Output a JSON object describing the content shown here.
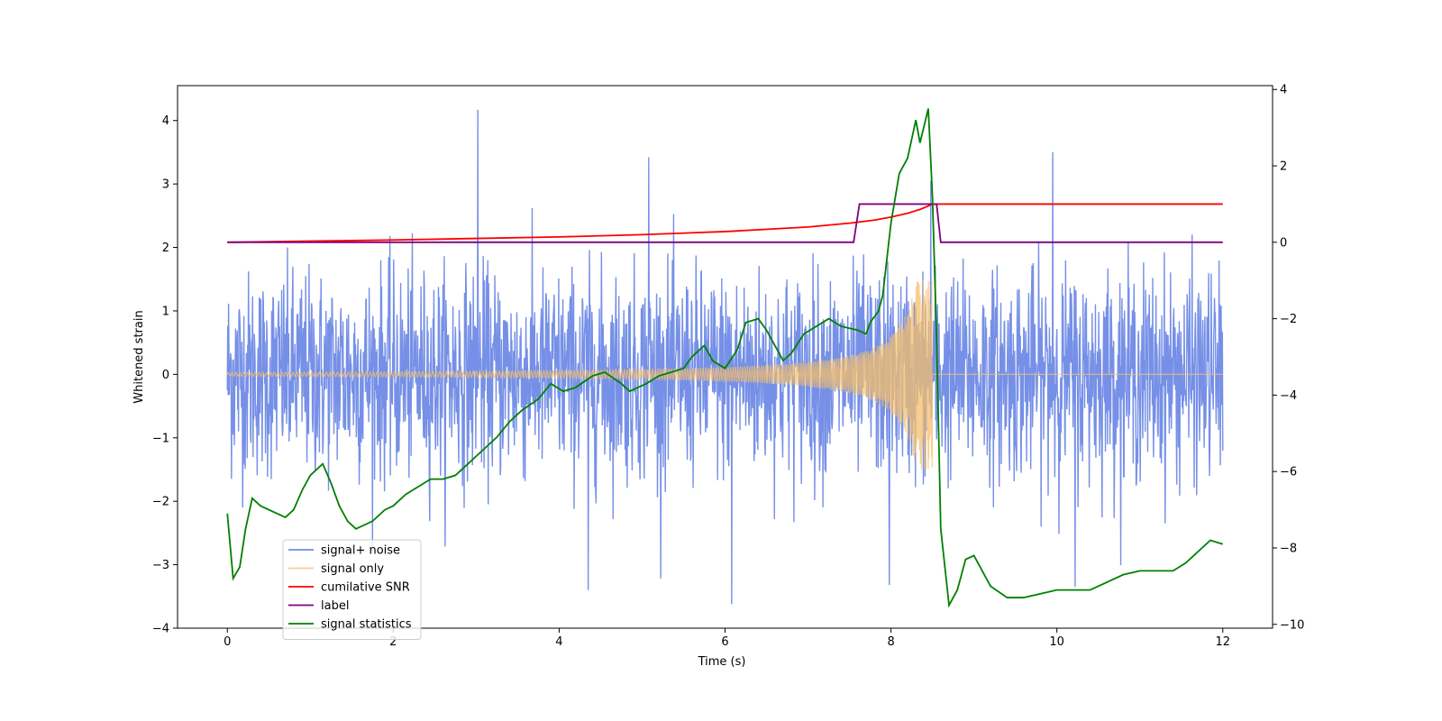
{
  "chart_data": {
    "type": "line",
    "title": "",
    "xlabel": "Time (s)",
    "ylabel": "Whitened strain",
    "xlim": [
      -0.6,
      12.6
    ],
    "ylim": [
      -4.0,
      4.55
    ],
    "y2lim": [
      -10.1,
      4.1
    ],
    "x_ticks": [
      0,
      2,
      4,
      6,
      8,
      10,
      12
    ],
    "x_tick_labels": [
      "0",
      "2",
      "4",
      "6",
      "8",
      "10",
      "12"
    ],
    "y_ticks": [
      -4,
      -3,
      -2,
      -1,
      0,
      1,
      2,
      3,
      4
    ],
    "y_tick_labels": [
      "−4",
      "−3",
      "−2",
      "−1",
      "0",
      "1",
      "2",
      "3",
      "4"
    ],
    "y2_ticks": [
      -10,
      -8,
      -6,
      -4,
      -2,
      0,
      2,
      4
    ],
    "y2_tick_labels": [
      "−10",
      "−8",
      "−6",
      "−4",
      "−2",
      "0",
      "2",
      "4"
    ],
    "grid": false,
    "legend_position": "lower-left",
    "series": [
      {
        "name": "signal+ noise",
        "color": "#6f8ae6",
        "axis": "left",
        "kind": "noise",
        "noise_std": 0.8,
        "t_start": 0,
        "t_end": 12,
        "peaks": [
          [
            3.02,
            4.17
          ],
          [
            5.08,
            3.42
          ],
          [
            8.48,
            3.05
          ],
          [
            9.95,
            3.5
          ],
          [
            6.08,
            -3.62
          ],
          [
            4.35,
            -3.4
          ],
          [
            10.22,
            -3.35
          ],
          [
            7.98,
            -3.32
          ]
        ]
      },
      {
        "name": "signal only",
        "color": "#f5bf6b",
        "axis": "left",
        "kind": "chirp",
        "t_start": 0,
        "t_merge": 8.5,
        "t_end": 12,
        "amp_start": 0.03,
        "amp_end": 1.5
      },
      {
        "name": "cumilative SNR",
        "color": "#ff0000",
        "axis": "right",
        "kind": "line",
        "x": [
          0,
          1,
          2,
          3,
          4,
          5,
          6,
          7,
          7.5,
          7.8,
          8.0,
          8.2,
          8.35,
          8.45,
          8.5,
          8.55,
          10,
          12
        ],
        "y": [
          0.0,
          0.03,
          0.06,
          0.1,
          0.14,
          0.2,
          0.28,
          0.4,
          0.5,
          0.58,
          0.66,
          0.76,
          0.86,
          0.95,
          1.0,
          1.0,
          1.0,
          1.0
        ]
      },
      {
        "name": "label",
        "color": "#800080",
        "axis": "right",
        "kind": "line",
        "x": [
          0,
          7.55,
          7.62,
          8.55,
          8.6,
          12
        ],
        "y": [
          0,
          0,
          1,
          1,
          0,
          0
        ]
      },
      {
        "name": "signal statistics",
        "color": "#008000",
        "axis": "right",
        "kind": "line",
        "x": [
          0,
          0.07,
          0.15,
          0.22,
          0.3,
          0.4,
          0.5,
          0.7,
          0.8,
          0.9,
          1.0,
          1.1,
          1.15,
          1.25,
          1.35,
          1.45,
          1.55,
          1.65,
          1.75,
          1.9,
          2.0,
          2.15,
          2.3,
          2.45,
          2.6,
          2.75,
          3.0,
          3.1,
          3.25,
          3.4,
          3.55,
          3.75,
          3.9,
          4.05,
          4.2,
          4.4,
          4.55,
          4.75,
          4.85,
          5.05,
          5.2,
          5.35,
          5.5,
          5.6,
          5.75,
          5.85,
          6.0,
          6.15,
          6.25,
          6.4,
          6.5,
          6.6,
          6.7,
          6.8,
          6.95,
          7.1,
          7.25,
          7.4,
          7.6,
          7.7,
          7.75,
          7.85,
          7.9,
          8.0,
          8.1,
          8.2,
          8.3,
          8.35,
          8.45,
          8.5,
          8.55,
          8.6,
          8.7,
          8.8,
          8.9,
          9.0,
          9.2,
          9.4,
          9.6,
          9.8,
          10.0,
          10.2,
          10.4,
          10.6,
          10.8,
          11.0,
          11.2,
          11.4,
          11.55,
          11.7,
          11.85,
          12.0
        ],
        "y": [
          -7.1,
          -8.8,
          -8.5,
          -7.5,
          -6.7,
          -6.9,
          -7.0,
          -7.2,
          -7.0,
          -6.5,
          -6.1,
          -5.9,
          -5.8,
          -6.3,
          -6.9,
          -7.3,
          -7.5,
          -7.4,
          -7.3,
          -7.0,
          -6.9,
          -6.6,
          -6.4,
          -6.2,
          -6.2,
          -6.1,
          -5.6,
          -5.4,
          -5.1,
          -4.7,
          -4.4,
          -4.1,
          -3.7,
          -3.9,
          -3.8,
          -3.5,
          -3.4,
          -3.7,
          -3.9,
          -3.7,
          -3.5,
          -3.4,
          -3.3,
          -3.0,
          -2.7,
          -3.1,
          -3.3,
          -2.8,
          -2.1,
          -2.0,
          -2.3,
          -2.7,
          -3.1,
          -2.9,
          -2.4,
          -2.2,
          -2.0,
          -2.2,
          -2.3,
          -2.4,
          -2.1,
          -1.8,
          -1.4,
          0.5,
          1.8,
          2.2,
          3.2,
          2.6,
          3.5,
          1.2,
          -2.5,
          -7.5,
          -9.5,
          -9.1,
          -8.3,
          -8.2,
          -9.0,
          -9.3,
          -9.3,
          -9.2,
          -9.1,
          -9.1,
          -9.1,
          -8.9,
          -8.7,
          -8.6,
          -8.6,
          -8.6,
          -8.4,
          -8.1,
          -7.8,
          -7.9
        ]
      }
    ]
  }
}
